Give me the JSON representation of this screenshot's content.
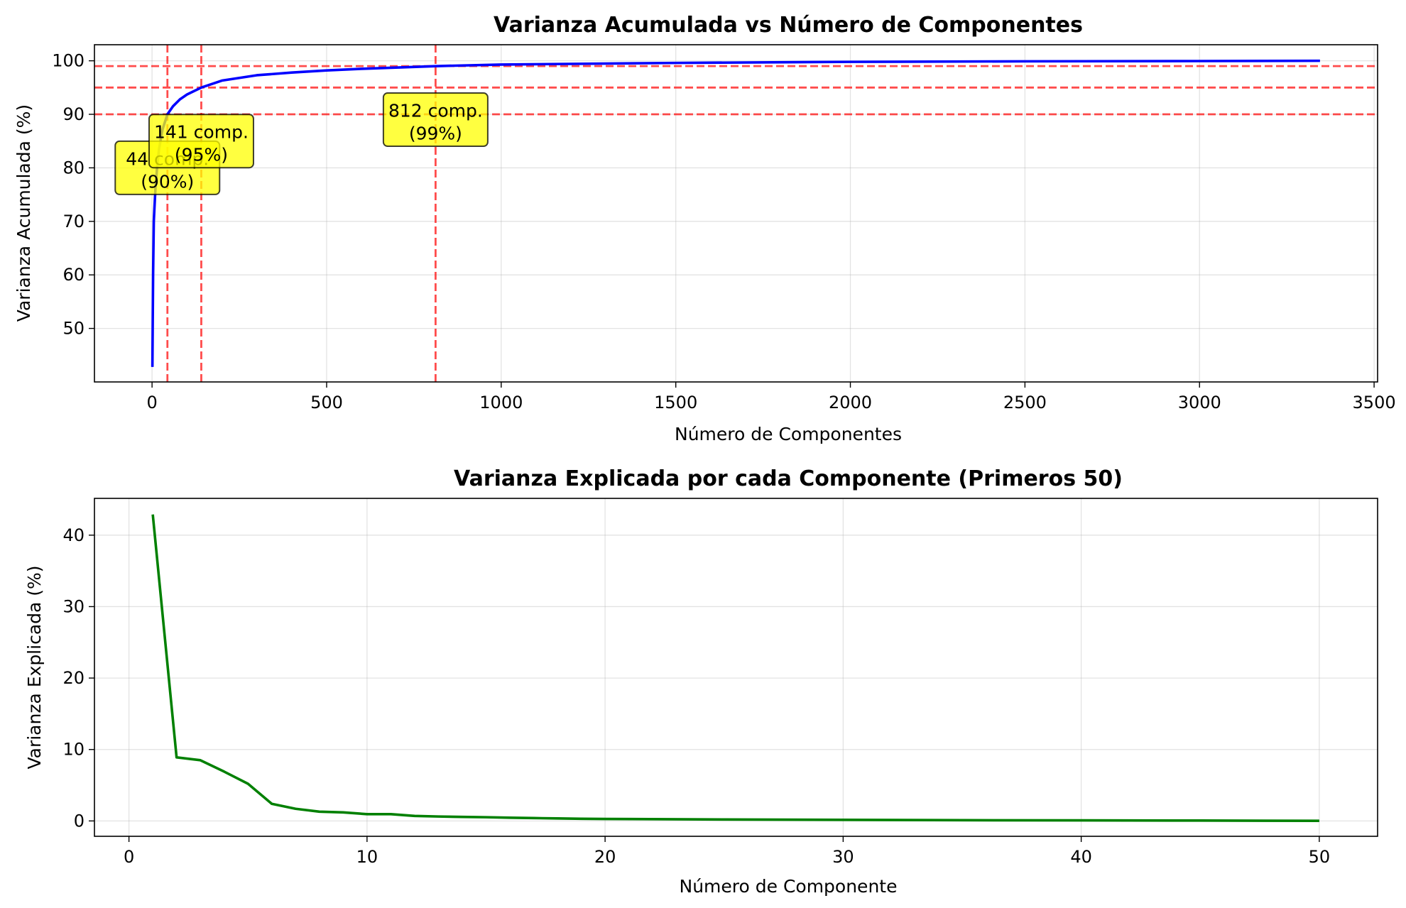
{
  "chart_data": [
    {
      "type": "line",
      "title": "Varianza Acumulada vs Número de Componentes",
      "xlabel": "Número de Componentes",
      "ylabel": "Varianza Acumulada (%)",
      "xlim": [
        -165,
        3510
      ],
      "ylim": [
        40,
        103
      ],
      "xticks": [
        0,
        500,
        1000,
        1500,
        2000,
        2500,
        3000,
        3500
      ],
      "yticks": [
        50,
        60,
        70,
        80,
        90,
        100
      ],
      "grid": true,
      "series": [
        {
          "color": "#0000ff",
          "x": [
            1,
            2,
            3,
            5,
            8,
            10,
            15,
            20,
            30,
            44,
            60,
            80,
            100,
            141,
            200,
            300,
            400,
            500,
            600,
            812,
            1000,
            1500,
            2000,
            2500,
            3000,
            3345
          ],
          "y": [
            42.8,
            51.7,
            60.2,
            70.0,
            74.0,
            76.5,
            80.5,
            83.5,
            87.2,
            90.0,
            91.5,
            92.8,
            93.7,
            95.0,
            96.3,
            97.3,
            97.8,
            98.2,
            98.5,
            99.0,
            99.3,
            99.6,
            99.8,
            99.9,
            99.95,
            100.0
          ]
        }
      ],
      "threshold_lines": {
        "color": "#ff0000",
        "y": [
          90,
          95,
          99
        ],
        "x": [
          44,
          141,
          812
        ]
      },
      "annotations": [
        {
          "line1": "44 comp.",
          "line2": "(90%)",
          "x": 44,
          "y": 90
        },
        {
          "line1": "141 comp.",
          "line2": "(95%)",
          "x": 141,
          "y": 95
        },
        {
          "line1": "812 comp.",
          "line2": "(99%)",
          "x": 812,
          "y": 99
        }
      ],
      "annotation_color": "#ffff00"
    },
    {
      "type": "line",
      "title": "Varianza Explicada por cada Componente (Primeros 50)",
      "xlabel": "Número de Componente",
      "ylabel": "Varianza Explicada (%)",
      "xlim": [
        -1.45,
        52.45
      ],
      "ylim": [
        -2.15,
        45.15
      ],
      "xticks": [
        0,
        10,
        20,
        30,
        40,
        50
      ],
      "yticks": [
        0,
        10,
        20,
        30,
        40
      ],
      "grid": true,
      "series": [
        {
          "color": "#008000",
          "x": [
            1,
            2,
            3,
            4,
            5,
            6,
            7,
            8,
            9,
            10,
            11,
            12,
            13,
            14,
            15,
            16,
            17,
            18,
            19,
            20,
            25,
            30,
            35,
            40,
            45,
            50
          ],
          "y": [
            42.9,
            8.9,
            8.5,
            6.9,
            5.2,
            2.4,
            1.7,
            1.3,
            1.2,
            0.95,
            0.95,
            0.7,
            0.62,
            0.56,
            0.52,
            0.45,
            0.4,
            0.35,
            0.3,
            0.28,
            0.2,
            0.15,
            0.1,
            0.08,
            0.05,
            0.02
          ]
        }
      ]
    }
  ]
}
